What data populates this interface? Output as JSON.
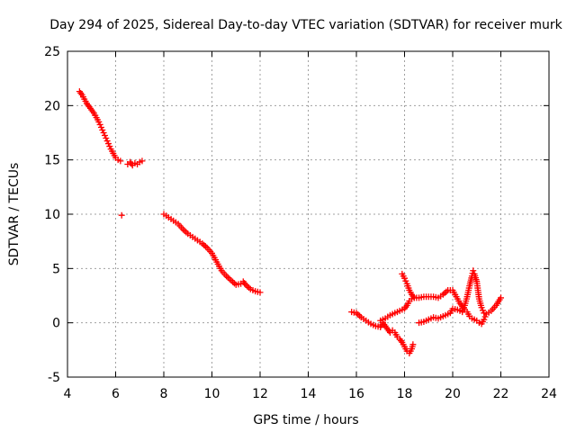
{
  "chart_data": {
    "type": "scatter",
    "title": "Day 294 of 2025, Sidereal Day-to-day VTEC variation (SDTVAR) for receiver murk",
    "xlabel": "GPS time / hours",
    "ylabel": "SDTVAR / TECUs",
    "xlim": [
      4,
      24
    ],
    "ylim": [
      -5,
      25
    ],
    "xticks": [
      "4",
      "6",
      "8",
      "10",
      "12",
      "14",
      "16",
      "18",
      "20",
      "22",
      "24"
    ],
    "yticks": [
      "-5",
      "0",
      "5",
      "10",
      "15",
      "20",
      "25"
    ],
    "grid": true,
    "marker": "+",
    "series_color": "#ff0000",
    "series": [
      {
        "name": "seg1",
        "points": [
          [
            4.5,
            21.3
          ],
          [
            4.6,
            21.0
          ],
          [
            4.7,
            20.6
          ],
          [
            4.8,
            20.2
          ],
          [
            4.9,
            19.9
          ],
          [
            5.0,
            19.6
          ],
          [
            5.1,
            19.3
          ],
          [
            5.2,
            18.9
          ],
          [
            5.3,
            18.5
          ],
          [
            5.4,
            18.0
          ],
          [
            5.5,
            17.5
          ],
          [
            5.6,
            17.0
          ],
          [
            5.7,
            16.5
          ],
          [
            5.8,
            16.0
          ],
          [
            5.9,
            15.6
          ],
          [
            6.0,
            15.2
          ],
          [
            6.1,
            15.0
          ],
          [
            6.2,
            14.9
          ]
        ]
      },
      {
        "name": "seg2",
        "points": [
          [
            6.5,
            14.6
          ],
          [
            6.6,
            14.8
          ],
          [
            6.7,
            14.5
          ],
          [
            6.8,
            14.7
          ],
          [
            6.9,
            14.6
          ],
          [
            7.0,
            14.8
          ],
          [
            7.1,
            14.9
          ]
        ]
      },
      {
        "name": "isolated",
        "points": [
          [
            6.25,
            9.9
          ]
        ]
      },
      {
        "name": "seg3",
        "points": [
          [
            8.0,
            10.0
          ],
          [
            8.2,
            9.7
          ],
          [
            8.4,
            9.4
          ],
          [
            8.6,
            9.1
          ],
          [
            8.8,
            8.6
          ],
          [
            9.0,
            8.2
          ],
          [
            9.2,
            7.9
          ],
          [
            9.4,
            7.6
          ],
          [
            9.6,
            7.3
          ],
          [
            9.8,
            6.9
          ],
          [
            10.0,
            6.4
          ],
          [
            10.1,
            6.0
          ],
          [
            10.2,
            5.6
          ],
          [
            10.3,
            5.2
          ],
          [
            10.4,
            4.8
          ],
          [
            10.6,
            4.3
          ],
          [
            10.8,
            3.9
          ],
          [
            11.0,
            3.5
          ],
          [
            11.2,
            3.6
          ],
          [
            11.3,
            3.8
          ],
          [
            11.4,
            3.5
          ],
          [
            11.6,
            3.1
          ],
          [
            11.8,
            2.9
          ],
          [
            12.0,
            2.8
          ]
        ]
      },
      {
        "name": "seg4",
        "points": [
          [
            15.8,
            1.0
          ],
          [
            16.0,
            0.9
          ],
          [
            16.2,
            0.5
          ],
          [
            16.4,
            0.2
          ],
          [
            16.6,
            -0.1
          ],
          [
            16.8,
            -0.3
          ],
          [
            17.0,
            -0.4
          ],
          [
            17.1,
            0.0
          ],
          [
            17.2,
            -0.3
          ],
          [
            17.3,
            -0.6
          ],
          [
            17.4,
            -0.9
          ],
          [
            17.5,
            -0.7
          ],
          [
            17.6,
            -0.9
          ],
          [
            17.7,
            -1.3
          ],
          [
            17.8,
            -1.5
          ],
          [
            17.9,
            -1.8
          ],
          [
            18.0,
            -2.2
          ],
          [
            18.1,
            -2.6
          ],
          [
            18.2,
            -2.8
          ],
          [
            18.3,
            -2.4
          ],
          [
            18.35,
            -2.0
          ]
        ]
      },
      {
        "name": "seg5",
        "points": [
          [
            17.0,
            0.2
          ],
          [
            17.2,
            0.4
          ],
          [
            17.4,
            0.7
          ],
          [
            17.6,
            0.9
          ],
          [
            17.8,
            1.1
          ],
          [
            18.0,
            1.3
          ],
          [
            18.1,
            1.6
          ],
          [
            18.2,
            2.0
          ],
          [
            18.3,
            2.2
          ],
          [
            18.4,
            2.3
          ],
          [
            18.6,
            2.3
          ],
          [
            18.8,
            2.4
          ],
          [
            19.0,
            2.4
          ],
          [
            19.2,
            2.4
          ],
          [
            19.4,
            2.3
          ],
          [
            19.6,
            2.6
          ],
          [
            19.8,
            3.0
          ],
          [
            20.0,
            3.0
          ],
          [
            20.1,
            2.6
          ],
          [
            20.2,
            2.2
          ],
          [
            20.3,
            1.8
          ],
          [
            20.4,
            1.5
          ],
          [
            20.5,
            1.2
          ],
          [
            20.6,
            1.0
          ],
          [
            20.7,
            0.6
          ],
          [
            20.8,
            0.4
          ],
          [
            20.9,
            0.3
          ],
          [
            21.0,
            0.2
          ],
          [
            21.1,
            0.0
          ],
          [
            21.2,
            -0.1
          ],
          [
            21.3,
            0.3
          ],
          [
            21.4,
            0.8
          ],
          [
            21.6,
            1.1
          ],
          [
            21.8,
            1.6
          ],
          [
            22.0,
            2.3
          ]
        ]
      },
      {
        "name": "seg6",
        "points": [
          [
            17.9,
            4.5
          ],
          [
            18.0,
            4.1
          ],
          [
            18.1,
            3.6
          ],
          [
            18.2,
            3.0
          ],
          [
            18.3,
            2.6
          ],
          [
            18.4,
            2.3
          ]
        ]
      },
      {
        "name": "seg7",
        "points": [
          [
            18.6,
            0.0
          ],
          [
            18.8,
            0.1
          ],
          [
            19.0,
            0.3
          ],
          [
            19.2,
            0.5
          ],
          [
            19.4,
            0.4
          ],
          [
            19.6,
            0.6
          ],
          [
            19.8,
            0.8
          ],
          [
            19.9,
            0.9
          ],
          [
            20.0,
            1.3
          ],
          [
            20.2,
            1.2
          ],
          [
            20.4,
            1.0
          ],
          [
            20.5,
            1.6
          ],
          [
            20.6,
            2.4
          ],
          [
            20.7,
            3.4
          ],
          [
            20.8,
            4.3
          ],
          [
            20.85,
            4.8
          ],
          [
            20.9,
            4.5
          ],
          [
            21.0,
            3.8
          ],
          [
            21.05,
            3.0
          ],
          [
            21.1,
            2.2
          ],
          [
            21.2,
            1.4
          ],
          [
            21.3,
            0.9
          ]
        ]
      }
    ]
  }
}
